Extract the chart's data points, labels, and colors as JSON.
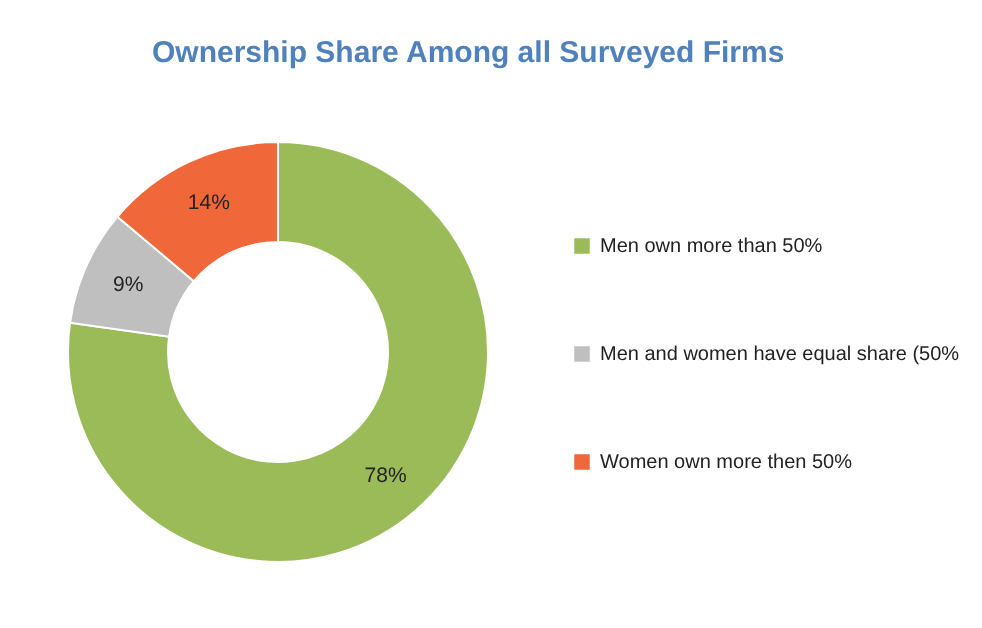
{
  "chart_data": {
    "type": "donut",
    "title": "Ownership Share Among all Surveyed Firms",
    "categories": [
      "Men own more than 50%",
      "Men and women have equal share (50%",
      "Women own more then 50%"
    ],
    "values": [
      78,
      9,
      14
    ],
    "colors": [
      "#9bbb59",
      "#bfbfbf",
      "#f0683a"
    ],
    "value_labels": [
      "78%",
      "9%",
      "14%"
    ],
    "legend": "right"
  }
}
